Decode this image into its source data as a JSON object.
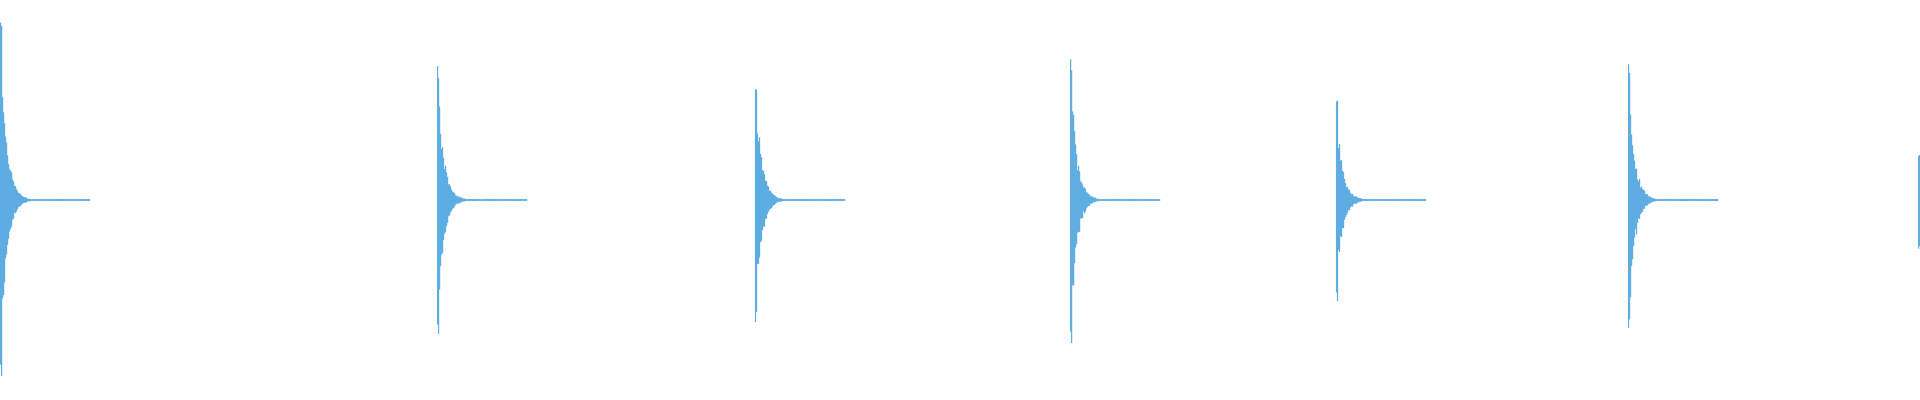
{
  "waveform": {
    "color": "#5dade2",
    "background": "#ffffff",
    "transients": [
      {
        "time_fraction": 0.0,
        "peak_amplitude": 0.95
      },
      {
        "time_fraction": 0.2276,
        "peak_amplitude": 0.7
      },
      {
        "time_fraction": 0.3932,
        "peak_amplitude": 0.64
      },
      {
        "time_fraction": 0.5573,
        "peak_amplitude": 0.73
      },
      {
        "time_fraction": 0.6958,
        "peak_amplitude": 0.52
      },
      {
        "time_fraction": 0.8479,
        "peak_amplitude": 0.7
      },
      {
        "time_fraction": 0.999,
        "peak_amplitude": 0.25
      }
    ]
  }
}
